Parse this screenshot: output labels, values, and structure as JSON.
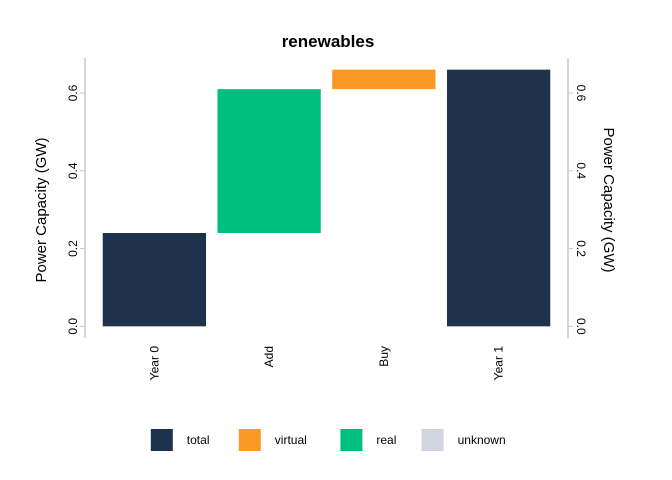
{
  "chart_data": {
    "type": "bar",
    "subtype": "waterfall",
    "title": "renewables",
    "ylabel": "Power Capacity (GW)",
    "ylabel_right": "Power Capacity (GW)",
    "xlabel": "",
    "categories": [
      "Year 0",
      "Add",
      "Buy",
      "Year 1"
    ],
    "ylim": [
      -0.03,
      0.69
    ],
    "yticks": [
      0.0,
      0.2,
      0.4,
      0.6
    ],
    "ytick_labels": [
      "0.0",
      "0.2",
      "0.4",
      "0.6"
    ],
    "bars": [
      {
        "category": "Year 0",
        "series": "total",
        "start": 0.0,
        "end": 0.24
      },
      {
        "category": "Add",
        "series": "real",
        "start": 0.24,
        "end": 0.61
      },
      {
        "category": "Buy",
        "series": "virtual",
        "start": 0.61,
        "end": 0.66
      },
      {
        "category": "Year 1",
        "series": "total",
        "start": 0.0,
        "end": 0.66
      }
    ],
    "legend": {
      "position": "bottom",
      "items": [
        {
          "name": "total",
          "color": "#1e314d"
        },
        {
          "name": "virtual",
          "color": "#fb9824"
        },
        {
          "name": "real",
          "color": "#00c07f"
        },
        {
          "name": "unknown",
          "color": "#d0d5df"
        }
      ]
    },
    "grid": false
  }
}
